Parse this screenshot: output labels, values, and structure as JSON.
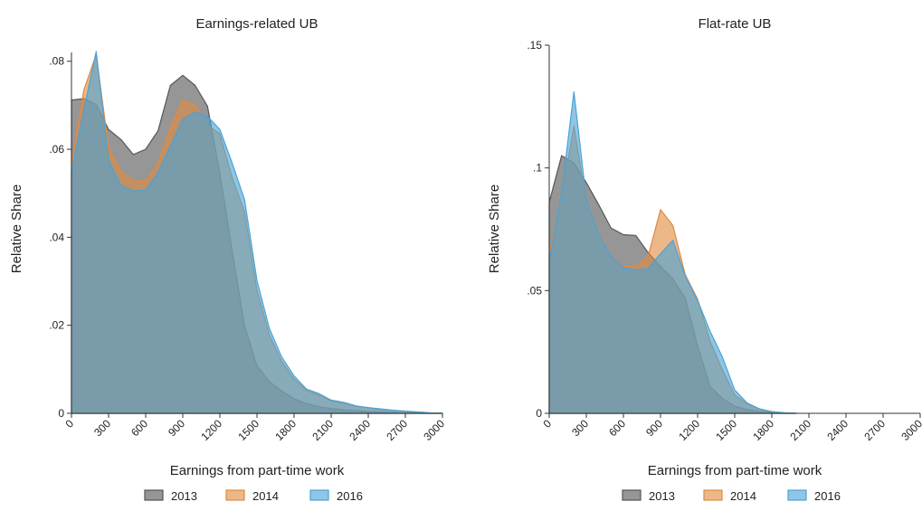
{
  "chart_data": [
    {
      "type": "area",
      "title": "Earnings-related UB",
      "xlabel": "Earnings from part-time work",
      "ylabel": "Relative Share",
      "xlim": [
        0,
        3000
      ],
      "ylim": [
        0,
        0.082
      ],
      "x_ticks": [
        0,
        300,
        600,
        900,
        1200,
        1500,
        1800,
        2100,
        2400,
        2700,
        3000
      ],
      "x_tick_labels": [
        "0",
        "300",
        "600",
        "900",
        "1200",
        "1500",
        "1800",
        "2100",
        "2400",
        "2700",
        "3000"
      ],
      "y_ticks": [
        0,
        0.02,
        0.04,
        0.06,
        0.08
      ],
      "y_tick_labels": [
        "0",
        ".02",
        ".04",
        ".06",
        ".08"
      ],
      "grid": false,
      "legend_position": "bottom",
      "series": [
        {
          "name": "2013",
          "color": "#555555",
          "points": [
            [
              0,
              0.065
            ],
            [
              0.1,
              0.0712
            ],
            [
              100,
              0.0715
            ],
            [
              200,
              0.0702
            ],
            [
              300,
              0.0645
            ],
            [
              400,
              0.0622
            ],
            [
              500,
              0.0588
            ],
            [
              600,
              0.06
            ],
            [
              700,
              0.0642
            ],
            [
              800,
              0.0745
            ],
            [
              900,
              0.0768
            ],
            [
              1000,
              0.0745
            ],
            [
              1100,
              0.0698
            ],
            [
              1200,
              0.0545
            ],
            [
              1300,
              0.0368
            ],
            [
              1400,
              0.0198
            ],
            [
              1500,
              0.0108
            ],
            [
              1600,
              0.0072
            ],
            [
              1700,
              0.0051
            ],
            [
              1800,
              0.0033
            ],
            [
              1900,
              0.0022
            ],
            [
              2000,
              0.0015
            ],
            [
              2100,
              0.0011
            ],
            [
              2200,
              0.0008
            ],
            [
              2300,
              0.0006
            ],
            [
              2400,
              0.0004
            ],
            [
              2500,
              0.0003
            ],
            [
              2600,
              0.0002
            ],
            [
              2700,
              0.0001
            ],
            [
              2800,
              0.0001
            ],
            [
              3000,
              0
            ]
          ]
        },
        {
          "name": "2014",
          "color": "#e08a40",
          "points": [
            [
              0,
              0.056
            ],
            [
              100,
              0.0735
            ],
            [
              200,
              0.0815
            ],
            [
              300,
              0.0605
            ],
            [
              400,
              0.055
            ],
            [
              500,
              0.0528
            ],
            [
              600,
              0.0528
            ],
            [
              700,
              0.0568
            ],
            [
              800,
              0.065
            ],
            [
              900,
              0.0712
            ],
            [
              1000,
              0.07
            ],
            [
              1100,
              0.0655
            ],
            [
              1200,
              0.0635
            ],
            [
              1300,
              0.0535
            ],
            [
              1400,
              0.0458
            ],
            [
              1500,
              0.028
            ],
            [
              1600,
              0.0178
            ],
            [
              1700,
              0.0118
            ],
            [
              1800,
              0.0078
            ],
            [
              1900,
              0.0052
            ],
            [
              2000,
              0.0042
            ],
            [
              2100,
              0.0028
            ],
            [
              2200,
              0.0023
            ],
            [
              2300,
              0.0016
            ],
            [
              2400,
              0.0013
            ],
            [
              2500,
              0.0009
            ],
            [
              2600,
              0.0007
            ],
            [
              2700,
              0.0005
            ],
            [
              2800,
              0.0003
            ],
            [
              2900,
              0.0001
            ],
            [
              3000,
              0
            ]
          ]
        },
        {
          "name": "2016",
          "color": "#4aa3d6",
          "points": [
            [
              0,
              0.055
            ],
            [
              100,
              0.069
            ],
            [
              200,
              0.0822
            ],
            [
              300,
              0.0575
            ],
            [
              400,
              0.0518
            ],
            [
              500,
              0.0505
            ],
            [
              600,
              0.0508
            ],
            [
              700,
              0.0548
            ],
            [
              800,
              0.0608
            ],
            [
              900,
              0.0668
            ],
            [
              1000,
              0.0685
            ],
            [
              1100,
              0.0675
            ],
            [
              1200,
              0.0645
            ],
            [
              1300,
              0.0568
            ],
            [
              1400,
              0.0485
            ],
            [
              1500,
              0.0302
            ],
            [
              1600,
              0.0193
            ],
            [
              1700,
              0.0128
            ],
            [
              1800,
              0.0085
            ],
            [
              1900,
              0.0055
            ],
            [
              2000,
              0.0045
            ],
            [
              2100,
              0.003
            ],
            [
              2200,
              0.0025
            ],
            [
              2300,
              0.0017
            ],
            [
              2400,
              0.0013
            ],
            [
              2500,
              0.001
            ],
            [
              2600,
              0.0007
            ],
            [
              2700,
              0.0005
            ],
            [
              2800,
              0.0003
            ],
            [
              2900,
              0.0001
            ],
            [
              3000,
              0
            ]
          ]
        }
      ]
    },
    {
      "type": "area",
      "title": "Flat-rate UB",
      "xlabel": "Earnings from part-time work",
      "ylabel": "Relative Share",
      "xlim": [
        0,
        3000
      ],
      "ylim": [
        0,
        0.15
      ],
      "x_ticks": [
        0,
        300,
        600,
        900,
        1200,
        1500,
        1800,
        2100,
        2400,
        2700,
        3000
      ],
      "x_tick_labels": [
        "0",
        "300",
        "600",
        "900",
        "1200",
        "1500",
        "1800",
        "2100",
        "2400",
        "2700",
        "3000"
      ],
      "y_ticks": [
        0,
        0.05,
        0.1,
        0.15
      ],
      "y_tick_labels": [
        "0",
        ".05",
        ".1",
        ".15"
      ],
      "grid": false,
      "legend_position": "bottom",
      "series": [
        {
          "name": "2013",
          "color": "#555555",
          "points": [
            [
              0,
              0.086
            ],
            [
              100,
              0.105
            ],
            [
              200,
              0.102
            ],
            [
              300,
              0.094
            ],
            [
              400,
              0.085
            ],
            [
              500,
              0.0755
            ],
            [
              600,
              0.0728
            ],
            [
              700,
              0.0725
            ],
            [
              800,
              0.0655
            ],
            [
              900,
              0.0598
            ],
            [
              1000,
              0.0548
            ],
            [
              1100,
              0.047
            ],
            [
              1200,
              0.0275
            ],
            [
              1300,
              0.011
            ],
            [
              1400,
              0.006
            ],
            [
              1500,
              0.003
            ],
            [
              1600,
              0.0015
            ],
            [
              1700,
              0.0008
            ],
            [
              1800,
              0.0004
            ],
            [
              1900,
              0.0002
            ],
            [
              2000,
              0
            ]
          ]
        },
        {
          "name": "2014",
          "color": "#e08a40",
          "points": [
            [
              0,
              0.065
            ],
            [
              100,
              0.088
            ],
            [
              200,
              0.117
            ],
            [
              300,
              0.086
            ],
            [
              400,
              0.072
            ],
            [
              500,
              0.064
            ],
            [
              600,
              0.06
            ],
            [
              700,
              0.06
            ],
            [
              800,
              0.064
            ],
            [
              900,
              0.083
            ],
            [
              1000,
              0.0765
            ],
            [
              1100,
              0.0565
            ],
            [
              1200,
              0.0465
            ],
            [
              1300,
              0.0295
            ],
            [
              1400,
              0.0178
            ],
            [
              1500,
              0.0075
            ],
            [
              1600,
              0.0038
            ],
            [
              1700,
              0.0018
            ],
            [
              1800,
              0.0007
            ],
            [
              1900,
              0.0002
            ],
            [
              2000,
              0
            ]
          ]
        },
        {
          "name": "2016",
          "color": "#4aa3d6",
          "points": [
            [
              0,
              0.062
            ],
            [
              100,
              0.09
            ],
            [
              200,
              0.131
            ],
            [
              300,
              0.087
            ],
            [
              400,
              0.0725
            ],
            [
              500,
              0.064
            ],
            [
              600,
              0.0595
            ],
            [
              700,
              0.0585
            ],
            [
              800,
              0.059
            ],
            [
              900,
              0.065
            ],
            [
              1000,
              0.0705
            ],
            [
              1100,
              0.056
            ],
            [
              1200,
              0.046
            ],
            [
              1300,
              0.0335
            ],
            [
              1400,
              0.023
            ],
            [
              1500,
              0.0095
            ],
            [
              1600,
              0.0042
            ],
            [
              1700,
              0.0018
            ],
            [
              1800,
              0.0007
            ],
            [
              1900,
              0.0002
            ],
            [
              2000,
              0
            ]
          ]
        }
      ]
    }
  ]
}
